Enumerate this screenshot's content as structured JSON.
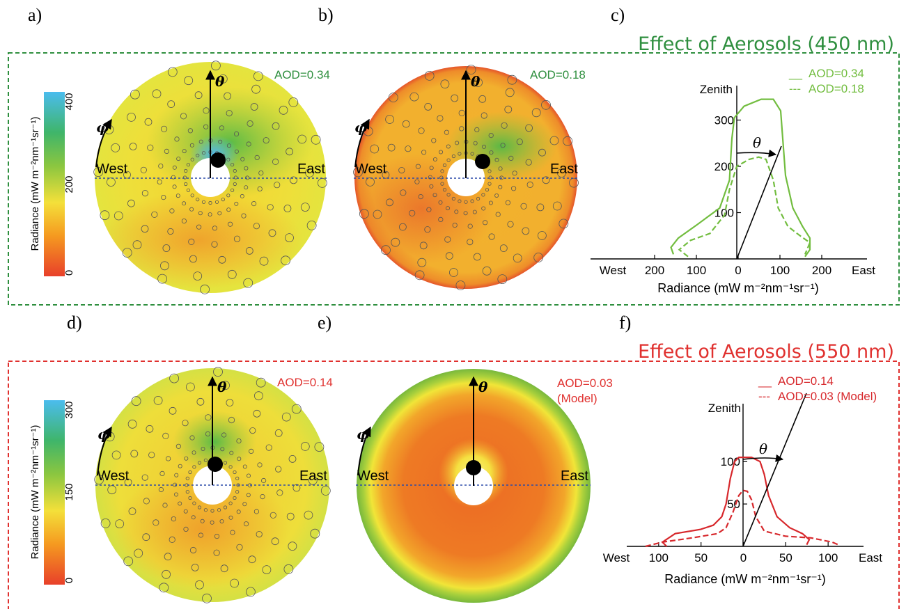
{
  "colors": {
    "green": "#2f8f3f",
    "red": "#e0312f",
    "curve_green": "#72bd3f",
    "curve_red": "#d7282c",
    "dotted_line": "#2b4aa8"
  },
  "panel_letters": [
    "a)",
    "b)",
    "c)",
    "d)",
    "e)",
    "f)"
  ],
  "sections": [
    {
      "title": "Effect of Aerosols (450 nm)"
    },
    {
      "title": "Effect of Aerosols (550 nm)"
    }
  ],
  "colorbars": [
    {
      "label": "Radiance (mW m⁻²nm⁻¹sr⁻¹)",
      "ticks": [
        "400",
        "200",
        "0"
      ],
      "max": 400
    },
    {
      "label": "Radiance (mW m⁻²nm⁻¹sr⁻¹)",
      "ticks": [
        "300",
        "150",
        "0"
      ],
      "max": 300
    }
  ],
  "sky_maps": [
    {
      "panel": "a)",
      "aod_label": "AOD=0.34",
      "west": "West",
      "east": "East",
      "theta": "θ",
      "phi": "φ"
    },
    {
      "panel": "b)",
      "aod_label": "AOD=0.18",
      "west": "West",
      "east": "East",
      "theta": "θ",
      "phi": "φ"
    },
    {
      "panel": "d)",
      "aod_label": "AOD=0.14",
      "west": "West",
      "east": "East",
      "theta": "θ",
      "phi": "φ"
    },
    {
      "panel": "e)",
      "aod_label": "AOD=0.03",
      "aod_sub": "(Model)",
      "west": "West",
      "east": "East",
      "theta": "θ",
      "phi": "φ"
    }
  ],
  "chart_data": [
    {
      "type": "line",
      "panel": "c)",
      "title": "",
      "xlabel": "Radiance (mW m⁻²nm⁻¹sr⁻¹)",
      "ylabel": "Zenith",
      "x_tick_labels": [
        "West",
        "200",
        "100",
        "0",
        "100",
        "200",
        "East"
      ],
      "y_ticks": [
        100,
        200,
        300
      ],
      "xlim": [
        -300,
        300
      ],
      "ylim": [
        0,
        400
      ],
      "theta_label": "θ",
      "series": [
        {
          "name": "AOD=0.34",
          "legend_dash": "__",
          "style": "solid",
          "points": [
            [
              -130,
              10
            ],
            [
              -135,
              25
            ],
            [
              -120,
              45
            ],
            [
              -80,
              75
            ],
            [
              -35,
              110
            ],
            [
              -15,
              170
            ],
            [
              -10,
              260
            ],
            [
              -5,
              305
            ],
            [
              15,
              330
            ],
            [
              50,
              345
            ],
            [
              75,
              345
            ],
            [
              90,
              320
            ],
            [
              95,
              250
            ],
            [
              100,
              180
            ],
            [
              115,
              110
            ],
            [
              135,
              70
            ],
            [
              150,
              45
            ],
            [
              150,
              20
            ],
            [
              140,
              5
            ]
          ]
        },
        {
          "name": "AOD=0.18",
          "legend_dash": "---",
          "style": "dashed",
          "points": [
            [
              -100,
              5
            ],
            [
              -118,
              20
            ],
            [
              -95,
              40
            ],
            [
              -55,
              55
            ],
            [
              -25,
              95
            ],
            [
              -15,
              150
            ],
            [
              0,
              200
            ],
            [
              25,
              215
            ],
            [
              45,
              220
            ],
            [
              60,
              215
            ],
            [
              75,
              170
            ],
            [
              85,
              110
            ],
            [
              105,
              70
            ],
            [
              130,
              50
            ],
            [
              150,
              35
            ],
            [
              140,
              10
            ]
          ]
        }
      ]
    },
    {
      "type": "line",
      "panel": "f)",
      "title": "",
      "xlabel": "Radiance (mW m⁻²nm⁻¹sr⁻¹)",
      "ylabel": "Zenith",
      "x_tick_labels": [
        "West",
        "100",
        "50",
        "0",
        "50",
        "100",
        "East"
      ],
      "y_ticks": [
        50,
        100
      ],
      "xlim": [
        -137,
        137
      ],
      "ylim": [
        0,
        170
      ],
      "theta_label": "θ",
      "series": [
        {
          "name": "AOD=0.14",
          "legend_dash": "__",
          "style": "solid",
          "points": [
            [
              -90,
              0
            ],
            [
              -95,
              5
            ],
            [
              -80,
              15
            ],
            [
              -50,
              20
            ],
            [
              -35,
              25
            ],
            [
              -25,
              35
            ],
            [
              -20,
              50
            ],
            [
              -15,
              80
            ],
            [
              -10,
              100
            ],
            [
              -5,
              105
            ],
            [
              10,
              105
            ],
            [
              20,
              100
            ],
            [
              25,
              85
            ],
            [
              30,
              60
            ],
            [
              40,
              35
            ],
            [
              55,
              22
            ],
            [
              70,
              15
            ],
            [
              78,
              8
            ],
            [
              75,
              2
            ]
          ]
        },
        {
          "name": "AOD=0.03 (Model)",
          "legend_dash": "---",
          "style": "dashed",
          "points": [
            [
              -115,
              0
            ],
            [
              -95,
              5
            ],
            [
              -60,
              10
            ],
            [
              -30,
              15
            ],
            [
              -20,
              22
            ],
            [
              -12,
              40
            ],
            [
              -5,
              60
            ],
            [
              0,
              66
            ],
            [
              5,
              65
            ],
            [
              10,
              55
            ],
            [
              15,
              35
            ],
            [
              25,
              18
            ],
            [
              50,
              12
            ],
            [
              80,
              10
            ],
            [
              105,
              5
            ],
            [
              112,
              2
            ]
          ]
        }
      ]
    }
  ]
}
